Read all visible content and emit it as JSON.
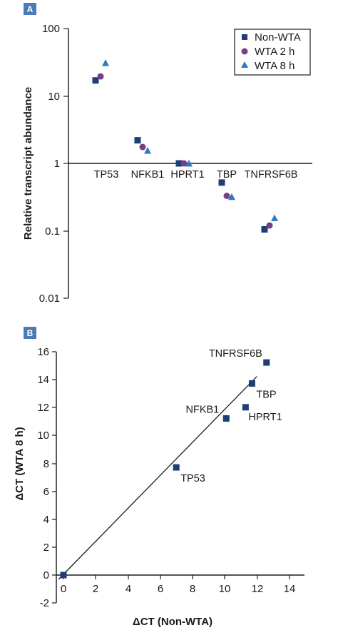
{
  "chart_data": [
    {
      "panel": "A",
      "type": "scatter",
      "ylabel": "Relative transcript abundance",
      "yscale": "log",
      "ylim": [
        0.01,
        100
      ],
      "yticks": [
        "100",
        "10",
        "1",
        "0.1",
        "0.01"
      ],
      "categories": [
        "TP53",
        "NFKB1",
        "HPRT1",
        "TBP",
        "TNFRSF6B"
      ],
      "series": [
        {
          "name": "Non-WTA",
          "marker": "square",
          "color": "#1f3e74",
          "values": [
            17,
            2.2,
            1.0,
            0.52,
            0.105
          ]
        },
        {
          "name": "WTA 2 h",
          "marker": "circle",
          "color": "#7a3e86",
          "values": [
            19.5,
            1.75,
            1.0,
            0.33,
            0.12
          ]
        },
        {
          "name": "WTA 8 h",
          "marker": "triangle",
          "color": "#2f79c2",
          "values": [
            31,
            1.55,
            1.0,
            0.32,
            0.155
          ]
        }
      ],
      "legend": "top-right"
    },
    {
      "panel": "B",
      "type": "scatter",
      "xlabel": "ΔCT (Non-WTA)",
      "ylabel": "ΔCT (WTA 8 h)",
      "xlim": [
        -0.5,
        14
      ],
      "ylim": [
        -2.5,
        16
      ],
      "xticks": [
        "0",
        "2",
        "4",
        "6",
        "8",
        "10",
        "12",
        "14"
      ],
      "yticks": [
        "16",
        "14",
        "12",
        "10",
        "8",
        "6",
        "4",
        "2",
        "0",
        "-2"
      ],
      "points": [
        {
          "label": "",
          "x": 0,
          "y": 0
        },
        {
          "label": "TP53",
          "x": 7.0,
          "y": 7.7
        },
        {
          "label": "NFKB1",
          "x": 10.1,
          "y": 11.2
        },
        {
          "label": "HPRT1",
          "x": 11.3,
          "y": 12.0
        },
        {
          "label": "TBP",
          "x": 11.7,
          "y": 13.7
        },
        {
          "label": "TNFRSF6B",
          "x": 12.6,
          "y": 15.2
        }
      ],
      "fit_line": {
        "x": [
          -0.3,
          12.0
        ],
        "y": [
          -0.3,
          14.2
        ]
      },
      "marker": "square",
      "color": "#1f3e74"
    }
  ]
}
